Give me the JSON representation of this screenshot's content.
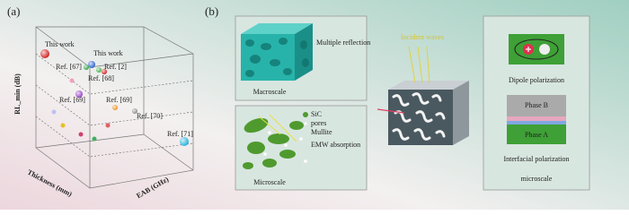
{
  "panel_a": {
    "label": "(a)",
    "axis_labels": {
      "z": "RL_min (dB)",
      "x": "Thickness (mm)",
      "y": "EAB (GHz)"
    },
    "points": [
      {
        "label": "This work"
      },
      {
        "label": "This work"
      },
      {
        "label": "Ref. [67]"
      },
      {
        "label": "Ref. [2]"
      },
      {
        "label": "Ref. [68]"
      },
      {
        "label": "Ref. [69]"
      },
      {
        "label": "Ref. [69]"
      },
      {
        "label": "Ref. [70]"
      },
      {
        "label": "Ref. [71]"
      }
    ]
  },
  "panel_b": {
    "label": "(b)",
    "macroscale": {
      "text": "Multiple reflection",
      "caption": "Macroscale"
    },
    "microscale": {
      "legend": [
        "SiC",
        "pores",
        "Mullite"
      ],
      "text": "EMW absorption",
      "caption": "Microscale"
    },
    "center": {
      "incident": "Incident waves"
    },
    "right": {
      "dipole": "Dipole polarization",
      "phase_b": "Phase B",
      "phase_a": "Phase A",
      "interfacial": "Interfacial polarization",
      "caption": "microscale"
    }
  }
}
